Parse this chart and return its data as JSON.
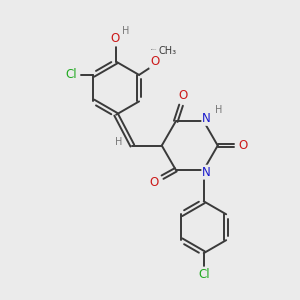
{
  "bg_color": "#ebebeb",
  "bond_color": "#3a3a3a",
  "bond_width": 1.4,
  "atom_colors": {
    "C": "#3a3a3a",
    "N": "#1a1acc",
    "O": "#cc1a1a",
    "Cl": "#22aa22",
    "H": "#777777"
  },
  "font_size_atom": 8.5,
  "font_size_small": 7.0,
  "font_size_label": 7.5
}
